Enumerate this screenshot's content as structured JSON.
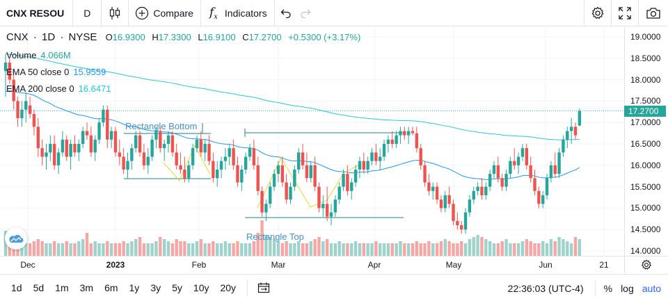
{
  "toolbar": {
    "symbol": "CNX RESOU",
    "interval": "D",
    "compare_label": "Compare",
    "indicators_label": "Indicators"
  },
  "legend": {
    "symbol": "CNX",
    "interval": "1D",
    "exchange": "NYSE",
    "open_label": "O",
    "open": "16.9300",
    "high_label": "H",
    "high": "17.3300",
    "low_label": "L",
    "low": "16.9100",
    "close_label": "C",
    "close": "17.2700",
    "change": "+0.5300 (+3.17%)",
    "volume_label": "Volume",
    "volume_value": "4.066M",
    "ema50_label": "EMA 50 close 0",
    "ema50_value": "15.9559",
    "ema200_label": "EMA 200 close 0",
    "ema200_value": "16.6471"
  },
  "drawings": {
    "rect_bottom_label": "Rectangle Bottom",
    "rect_top_label": "Rectangle Top"
  },
  "price_axis": {
    "ticks": [
      "19.0000",
      "18.5000",
      "18.0000",
      "17.5000",
      "17.0000",
      "16.5000",
      "16.0000",
      "15.5000",
      "15.0000",
      "14.5000",
      "14.0000"
    ],
    "last_price": "17.2700"
  },
  "time_axis": {
    "ticks": [
      "Dec",
      "2023",
      "Feb",
      "Mar",
      "Apr",
      "May",
      "Jun",
      "21"
    ]
  },
  "bottom_bar": {
    "ranges": [
      "1d",
      "5d",
      "1m",
      "3m",
      "6m",
      "1y",
      "3y",
      "5y",
      "10y",
      "20y"
    ],
    "clock": "22:36:03 (UTC-4)",
    "percent_label": "%",
    "log_label": "log",
    "auto_label": "auto"
  },
  "colors": {
    "up": "#26a69a",
    "down": "#ef5350",
    "vol_up": "#9ed2cb",
    "vol_down": "#f5a6a5",
    "ema50": "#2196f3",
    "ema200": "#26c6da",
    "drawing": "#1e7d8c",
    "accent": "#2962ff",
    "last_price_bg": "#26a69a"
  },
  "chart_data": {
    "type": "candlestick",
    "y_range": [
      13.95,
      19.2
    ],
    "candles": [
      [
        18.2,
        18.6,
        17.6,
        18.4
      ],
      [
        18.4,
        18.5,
        17.9,
        18.0
      ],
      [
        18.0,
        18.2,
        17.3,
        17.5
      ],
      [
        17.5,
        17.6,
        16.9,
        17.1
      ],
      [
        17.1,
        17.5,
        16.9,
        17.3
      ],
      [
        17.3,
        17.7,
        17.0,
        17.5
      ],
      [
        17.4,
        17.6,
        17.1,
        17.2
      ],
      [
        17.2,
        17.3,
        16.7,
        16.9
      ],
      [
        16.9,
        17.1,
        16.2,
        16.4
      ],
      [
        16.4,
        16.6,
        16.0,
        16.2
      ],
      [
        16.2,
        16.5,
        15.9,
        16.3
      ],
      [
        16.3,
        16.7,
        16.1,
        16.5
      ],
      [
        16.5,
        16.7,
        15.9,
        16.0
      ],
      [
        16.0,
        16.4,
        15.8,
        16.3
      ],
      [
        16.3,
        16.8,
        16.2,
        16.6
      ],
      [
        16.6,
        16.7,
        16.1,
        16.2
      ],
      [
        16.2,
        16.6,
        15.9,
        16.5
      ],
      [
        16.5,
        16.7,
        16.2,
        16.3
      ],
      [
        16.3,
        16.6,
        16.1,
        16.5
      ],
      [
        16.5,
        16.9,
        16.4,
        16.8
      ],
      [
        16.8,
        17.0,
        16.6,
        16.7
      ],
      [
        16.7,
        16.9,
        16.2,
        16.3
      ],
      [
        16.3,
        16.7,
        16.1,
        16.6
      ],
      [
        16.6,
        17.1,
        16.5,
        17.0
      ],
      [
        17.0,
        17.4,
        16.9,
        17.3
      ],
      [
        17.3,
        17.4,
        16.4,
        16.6
      ],
      [
        16.6,
        16.9,
        16.4,
        16.8
      ],
      [
        16.8,
        16.9,
        16.2,
        16.3
      ],
      [
        16.3,
        16.6,
        16.0,
        16.2
      ],
      [
        16.2,
        16.4,
        15.8,
        15.9
      ],
      [
        15.9,
        16.3,
        15.7,
        16.1
      ],
      [
        16.1,
        16.5,
        15.9,
        16.4
      ],
      [
        16.4,
        16.8,
        16.3,
        16.7
      ],
      [
        16.7,
        16.8,
        16.2,
        16.3
      ],
      [
        16.3,
        16.5,
        15.9,
        16.0
      ],
      [
        16.0,
        16.4,
        15.8,
        16.2
      ],
      [
        16.2,
        16.7,
        16.1,
        16.6
      ],
      [
        16.6,
        16.9,
        16.4,
        16.8
      ],
      [
        16.8,
        16.9,
        16.3,
        16.4
      ],
      [
        16.4,
        16.6,
        16.1,
        16.5
      ],
      [
        16.5,
        16.8,
        16.3,
        16.7
      ],
      [
        16.7,
        16.8,
        16.2,
        16.3
      ],
      [
        16.3,
        16.5,
        15.9,
        16.0
      ],
      [
        16.0,
        16.3,
        15.8,
        15.9
      ],
      [
        15.9,
        16.2,
        15.6,
        15.7
      ],
      [
        15.7,
        16.1,
        15.6,
        16.0
      ],
      [
        16.0,
        16.5,
        15.9,
        16.4
      ],
      [
        16.4,
        16.7,
        16.3,
        16.6
      ],
      [
        16.6,
        16.8,
        16.2,
        16.3
      ],
      [
        16.3,
        16.6,
        16.1,
        16.5
      ],
      [
        16.5,
        16.7,
        16.0,
        16.1
      ],
      [
        16.1,
        16.3,
        15.6,
        15.7
      ],
      [
        15.7,
        16.1,
        15.5,
        15.9
      ],
      [
        15.9,
        16.2,
        15.7,
        16.1
      ],
      [
        16.1,
        16.4,
        15.9,
        16.2
      ],
      [
        16.2,
        16.5,
        16.0,
        16.4
      ],
      [
        16.4,
        16.6,
        15.9,
        16.0
      ],
      [
        16.0,
        16.2,
        15.5,
        15.6
      ],
      [
        15.6,
        16.0,
        15.4,
        15.9
      ],
      [
        15.9,
        16.3,
        15.8,
        16.2
      ],
      [
        16.2,
        16.5,
        16.1,
        16.4
      ],
      [
        16.4,
        16.6,
        15.9,
        16.0
      ],
      [
        16.0,
        16.2,
        15.3,
        15.4
      ],
      [
        15.4,
        15.5,
        14.8,
        14.9
      ],
      [
        14.9,
        15.2,
        14.7,
        15.1
      ],
      [
        15.1,
        15.6,
        15.0,
        15.5
      ],
      [
        15.5,
        15.9,
        15.4,
        15.8
      ],
      [
        15.8,
        16.1,
        15.6,
        16.0
      ],
      [
        16.0,
        16.2,
        15.5,
        15.6
      ],
      [
        15.6,
        15.8,
        15.1,
        15.2
      ],
      [
        15.2,
        15.6,
        15.1,
        15.5
      ],
      [
        15.5,
        16.0,
        15.4,
        15.9
      ],
      [
        15.9,
        16.4,
        15.8,
        16.3
      ],
      [
        16.3,
        16.5,
        15.9,
        16.0
      ],
      [
        16.0,
        16.3,
        15.6,
        15.7
      ],
      [
        15.7,
        16.1,
        15.6,
        16.0
      ],
      [
        16.0,
        16.2,
        15.4,
        15.5
      ],
      [
        15.5,
        15.6,
        14.9,
        15.0
      ],
      [
        15.0,
        15.3,
        14.8,
        15.1
      ],
      [
        15.1,
        15.5,
        14.7,
        14.8
      ],
      [
        14.8,
        15.1,
        14.6,
        14.9
      ],
      [
        14.9,
        15.3,
        14.8,
        15.2
      ],
      [
        15.2,
        15.6,
        15.1,
        15.5
      ],
      [
        15.5,
        15.9,
        15.4,
        15.8
      ],
      [
        15.8,
        16.0,
        15.3,
        15.4
      ],
      [
        15.4,
        15.7,
        15.2,
        15.6
      ],
      [
        15.6,
        16.0,
        15.5,
        15.9
      ],
      [
        15.9,
        16.2,
        15.7,
        16.1
      ],
      [
        16.1,
        16.3,
        15.8,
        15.9
      ],
      [
        15.9,
        16.2,
        15.8,
        16.1
      ],
      [
        16.1,
        16.4,
        16.0,
        16.3
      ],
      [
        16.3,
        16.5,
        16.0,
        16.1
      ],
      [
        16.1,
        16.4,
        15.9,
        16.2
      ],
      [
        16.2,
        16.6,
        16.1,
        16.5
      ],
      [
        16.5,
        16.7,
        16.3,
        16.6
      ],
      [
        16.6,
        16.8,
        16.4,
        16.5
      ],
      [
        16.5,
        16.8,
        16.4,
        16.7
      ],
      [
        16.7,
        16.9,
        16.5,
        16.8
      ],
      [
        16.8,
        16.9,
        16.6,
        16.7
      ],
      [
        16.7,
        16.9,
        16.5,
        16.8
      ],
      [
        16.8,
        16.9,
        16.7,
        16.75
      ],
      [
        16.75,
        16.9,
        16.3,
        16.4
      ],
      [
        16.4,
        16.5,
        15.9,
        16.0
      ],
      [
        16.0,
        16.1,
        15.5,
        15.6
      ],
      [
        15.6,
        15.8,
        15.3,
        15.4
      ],
      [
        15.4,
        15.6,
        15.2,
        15.5
      ],
      [
        15.5,
        15.6,
        15.1,
        15.2
      ],
      [
        15.2,
        15.3,
        14.9,
        15.0
      ],
      [
        15.0,
        15.4,
        14.9,
        15.3
      ],
      [
        15.3,
        15.5,
        15.0,
        15.1
      ],
      [
        15.1,
        15.2,
        14.6,
        14.7
      ],
      [
        14.7,
        14.9,
        14.5,
        14.6
      ],
      [
        14.6,
        14.7,
        14.4,
        14.5
      ],
      [
        14.5,
        15.0,
        14.4,
        14.9
      ],
      [
        14.9,
        15.3,
        14.8,
        15.2
      ],
      [
        15.2,
        15.5,
        15.1,
        15.4
      ],
      [
        15.4,
        15.6,
        15.3,
        15.5
      ],
      [
        15.5,
        15.7,
        15.2,
        15.3
      ],
      [
        15.3,
        15.6,
        15.2,
        15.5
      ],
      [
        15.5,
        15.9,
        15.4,
        15.8
      ],
      [
        15.8,
        16.1,
        15.7,
        16.0
      ],
      [
        16.0,
        16.2,
        15.6,
        15.7
      ],
      [
        15.7,
        15.8,
        15.4,
        15.5
      ],
      [
        15.5,
        15.9,
        15.4,
        15.8
      ],
      [
        15.8,
        16.2,
        15.7,
        16.1
      ],
      [
        16.1,
        16.4,
        15.9,
        16.0
      ],
      [
        16.0,
        16.3,
        15.8,
        16.2
      ],
      [
        16.2,
        16.5,
        16.1,
        16.4
      ],
      [
        16.4,
        16.5,
        15.9,
        16.0
      ],
      [
        16.0,
        16.2,
        15.6,
        15.7
      ],
      [
        15.7,
        15.9,
        15.3,
        15.4
      ],
      [
        15.4,
        15.5,
        15.0,
        15.1
      ],
      [
        15.1,
        15.4,
        15.0,
        15.3
      ],
      [
        15.3,
        15.8,
        15.2,
        15.7
      ],
      [
        15.7,
        16.1,
        15.6,
        16.0
      ],
      [
        16.0,
        16.3,
        15.7,
        15.8
      ],
      [
        15.8,
        16.4,
        15.7,
        16.3
      ],
      [
        16.3,
        16.7,
        16.2,
        16.6
      ],
      [
        16.6,
        16.9,
        16.4,
        16.8
      ],
      [
        16.8,
        17.1,
        16.5,
        16.9
      ],
      [
        16.9,
        17.0,
        16.6,
        16.7
      ],
      [
        16.93,
        17.33,
        16.91,
        17.27
      ]
    ],
    "volume": [
      0.6,
      0.5,
      0.4,
      0.45,
      0.35,
      0.3,
      0.3,
      0.35,
      0.4,
      0.35,
      0.3,
      0.3,
      0.35,
      0.3,
      0.3,
      0.35,
      0.3,
      0.3,
      0.35,
      0.4,
      0.55,
      0.3,
      0.35,
      0.3,
      0.3,
      0.35,
      0.3,
      0.3,
      0.3,
      0.35,
      0.3,
      0.35,
      0.4,
      0.45,
      0.3,
      0.3,
      0.3,
      0.35,
      0.45,
      0.4,
      0.35,
      0.3,
      0.4,
      0.35,
      0.35,
      0.3,
      0.3,
      0.35,
      0.4,
      0.3,
      0.3,
      0.35,
      0.3,
      0.3,
      0.35,
      0.3,
      0.3,
      0.35,
      0.3,
      0.3,
      0.3,
      0.35,
      0.55,
      0.85,
      0.5,
      0.45,
      0.4,
      0.35,
      0.3,
      0.35,
      0.3,
      0.3,
      0.35,
      0.3,
      0.3,
      0.35,
      0.4,
      0.45,
      0.35,
      0.4,
      0.3,
      0.3,
      0.35,
      0.3,
      0.3,
      0.3,
      0.35,
      0.3,
      0.3,
      0.3,
      0.3,
      0.35,
      0.3,
      0.3,
      0.3,
      0.3,
      0.3,
      0.35,
      0.3,
      0.3,
      0.3,
      0.35,
      0.3,
      0.3,
      0.35,
      0.3,
      0.3,
      0.35,
      0.4,
      0.35,
      0.3,
      0.3,
      0.35,
      0.3,
      0.4,
      0.45,
      0.5,
      0.45,
      0.4,
      0.35,
      0.3,
      0.3,
      0.35,
      0.4,
      0.3,
      0.3,
      0.3,
      0.35,
      0.4,
      0.35,
      0.3,
      0.3,
      0.35,
      0.3,
      0.4,
      0.35,
      0.45,
      0.4,
      0.35,
      0.3,
      0.45,
      0.4,
      0.35,
      0.35,
      0.4,
      0.35,
      0.3,
      0.35,
      0.3,
      0.35,
      0.4,
      0.45,
      0.5,
      0.45,
      0.4,
      0.35,
      0.3,
      0.45
    ]
  }
}
